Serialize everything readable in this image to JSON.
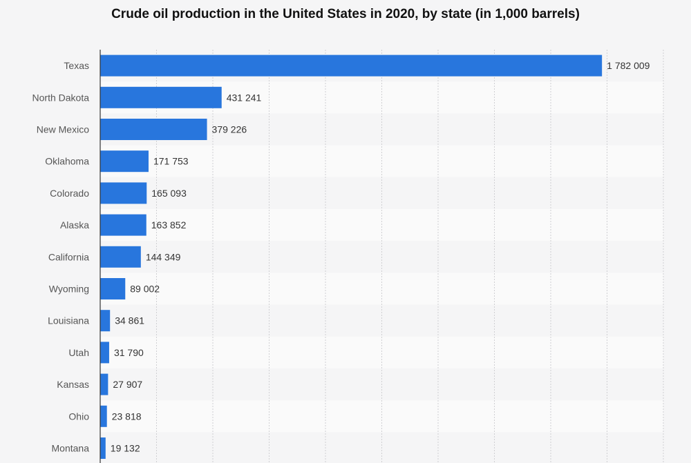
{
  "chart_data": {
    "type": "bar",
    "orientation": "horizontal",
    "title": "Crude oil production in the United States in 2020, by state (in 1,000 barrels)",
    "categories": [
      "Texas",
      "North Dakota",
      "New Mexico",
      "Oklahoma",
      "Colorado",
      "Alaska",
      "California",
      "Wyoming",
      "Louisiana",
      "Utah",
      "Kansas",
      "Ohio",
      "Montana"
    ],
    "values": [
      1782009,
      431241,
      379226,
      171753,
      165093,
      163852,
      144349,
      89002,
      34861,
      31790,
      27907,
      23818,
      19132
    ],
    "value_labels": [
      "1 782 009",
      "431 241",
      "379 226",
      "171 753",
      "165 093",
      "163 852",
      "144 349",
      "89 002",
      "34 861",
      "31 790",
      "27 907",
      "23 818",
      "19 132"
    ],
    "xlim": [
      0,
      2000000
    ],
    "gridlines": "vertical dashed",
    "legend": "none",
    "bar_color": "#2876dd"
  }
}
